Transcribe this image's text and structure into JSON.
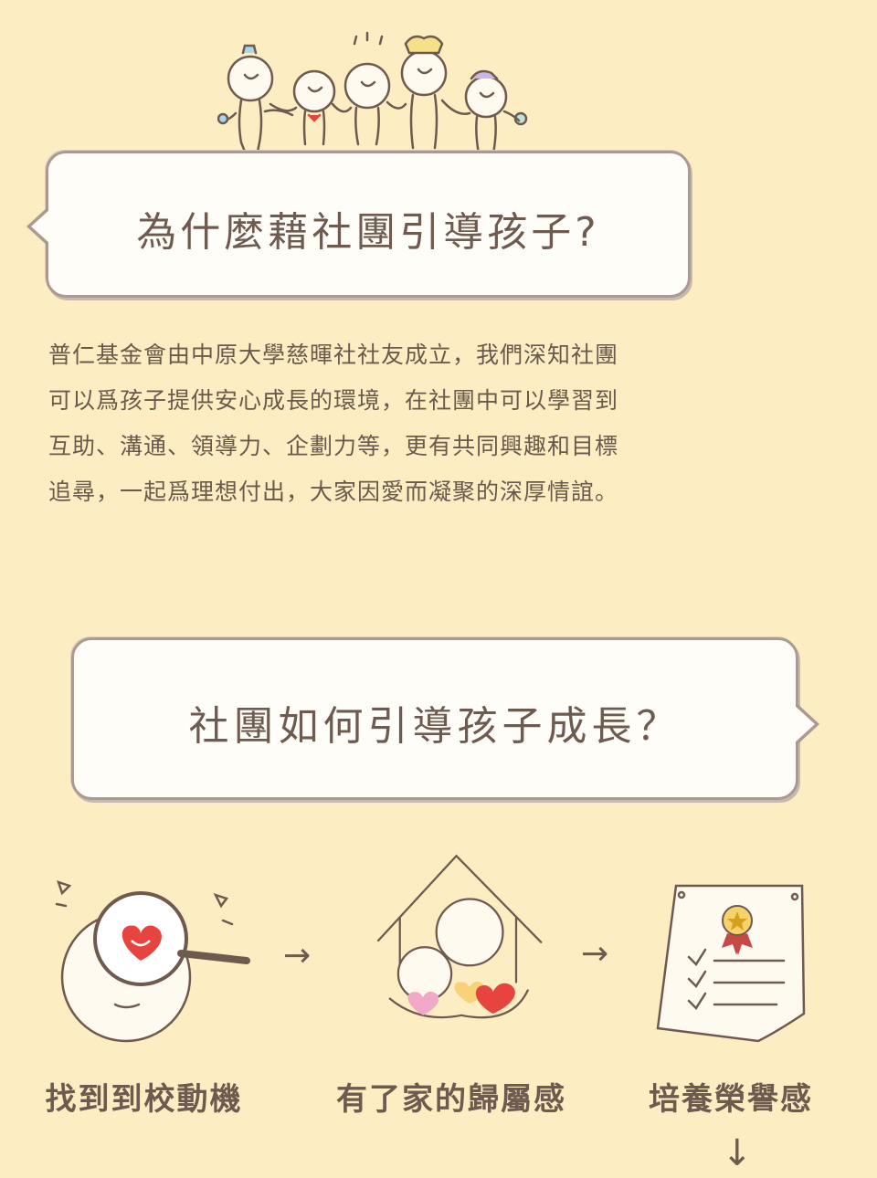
{
  "section1": {
    "title": "為什麼藉社團引導孩子?",
    "paragraph": [
      "普仁基金會由中原大學慈暉社社友成立，我們深知社團",
      "可以爲孩子提供安心成長的環境，在社團中可以學習到",
      "互助、溝通、領導力、企劃力等，更有共同興趣和目標",
      "追尋，一起爲理想付出，大家因愛而凝聚的深厚情誼。"
    ]
  },
  "section2": {
    "title": "社團如何引導孩子成長？",
    "steps": [
      {
        "label": "找到到校動機",
        "icon": "heart-magnifier-icon"
      },
      {
        "label": "有了家的歸屬感",
        "icon": "family-house-icon"
      },
      {
        "label": "培養榮譽感",
        "icon": "certificate-icon"
      }
    ],
    "colors": {
      "heart": "#e8443f",
      "pink": "#f2a9c8",
      "yellow": "#f8d27a",
      "medal": "#d4a020"
    }
  }
}
